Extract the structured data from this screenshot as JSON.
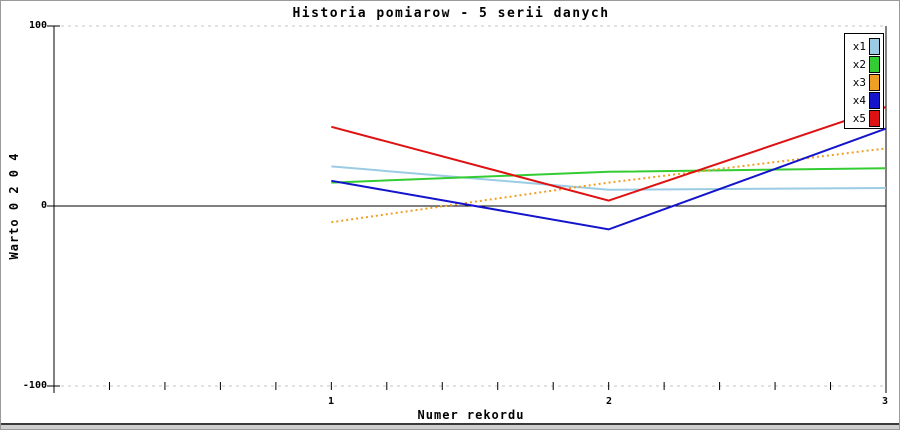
{
  "window": {
    "background": "#ffffff",
    "border_color": "#9a9a9a"
  },
  "chart_data": {
    "type": "line",
    "title": "Historia pomiarow - 5 serii danych",
    "xlabel": "Numer rekordu",
    "ylabel": "Warto 0 2 0 4",
    "x": [
      1,
      2,
      3
    ],
    "xlim": [
      0,
      3
    ],
    "ylim": [
      -100,
      100
    ],
    "x_tick_labels": [
      "1",
      "2",
      "3"
    ],
    "x_minor_tick_step": 0.2,
    "y_tick_labels": [
      "100",
      "0",
      "-100"
    ],
    "y_tick_values": [
      100,
      0,
      -100
    ],
    "grid": {
      "dashed_lines_at": [
        100,
        -100
      ],
      "dashed_color": "#c4c4c4",
      "zero_line": true,
      "zero_line_color": "#000000"
    },
    "legend_position": "top-right",
    "series": [
      {
        "name": "x1",
        "color": "#9CCBE4",
        "style": "solid",
        "values": [
          22,
          9,
          10
        ]
      },
      {
        "name": "x2",
        "color": "#33CC33",
        "style": "solid",
        "values": [
          13,
          19,
          21
        ]
      },
      {
        "name": "x3",
        "color": "#EFA024",
        "style": "dotted",
        "values": [
          -9,
          13,
          32
        ]
      },
      {
        "name": "x4",
        "color": "#1414CC",
        "style": "solid",
        "values": [
          14,
          -13,
          43
        ]
      },
      {
        "name": "x5",
        "color": "#DE1212",
        "style": "solid",
        "values": [
          44,
          3,
          55
        ]
      }
    ]
  }
}
